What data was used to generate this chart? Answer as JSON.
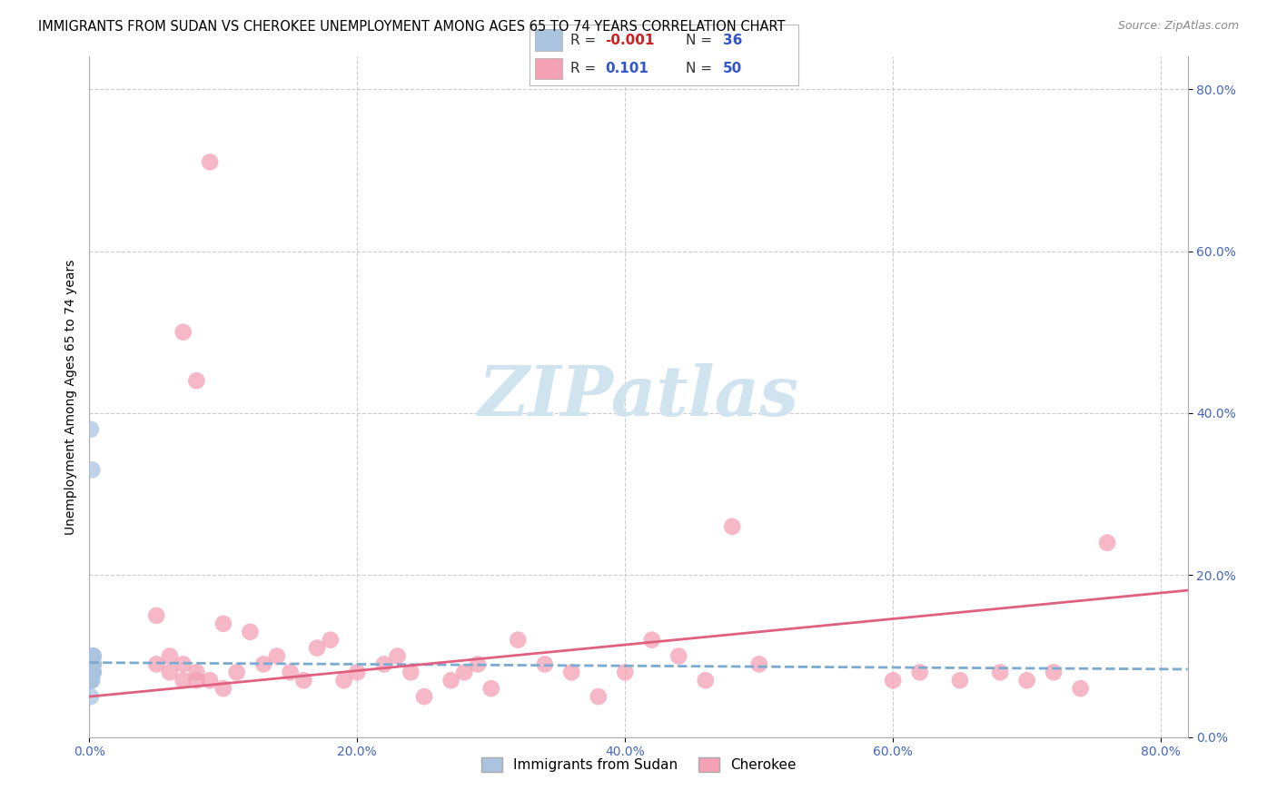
{
  "title": "IMMIGRANTS FROM SUDAN VS CHEROKEE UNEMPLOYMENT AMONG AGES 65 TO 74 YEARS CORRELATION CHART",
  "source": "Source: ZipAtlas.com",
  "ylabel": "Unemployment Among Ages 65 to 74 years",
  "series1_label": "Immigrants from Sudan",
  "series2_label": "Cherokee",
  "series1_color": "#aac4e0",
  "series2_color": "#f4a0b5",
  "trendline1_color": "#7aaad0",
  "trendline2_color": "#e06080",
  "watermark_text": "ZIPatlas",
  "watermark_color": "#d0e4f0",
  "legend_r1": "-0.001",
  "legend_n1": "36",
  "legend_r2": "0.101",
  "legend_n2": "50",
  "grid_color": "#cccccc",
  "bg_color": "#ffffff",
  "tick_color": "#4466bb",
  "xlim": [
    0.0,
    0.82
  ],
  "ylim": [
    0.0,
    0.84
  ],
  "xtick_vals": [
    0.0,
    0.2,
    0.4,
    0.6,
    0.8
  ],
  "ytick_vals": [
    0.0,
    0.2,
    0.4,
    0.6,
    0.8
  ],
  "blue_x": [
    0.001,
    0.002,
    0.001,
    0.002,
    0.003,
    0.001,
    0.002,
    0.001,
    0.003,
    0.002,
    0.001,
    0.002,
    0.003,
    0.001,
    0.002,
    0.001,
    0.002,
    0.001,
    0.003,
    0.001,
    0.002,
    0.001,
    0.002,
    0.003,
    0.002,
    0.001,
    0.002,
    0.001,
    0.002,
    0.001,
    0.002,
    0.001,
    0.002,
    0.003,
    0.001,
    0.002
  ],
  "blue_y": [
    0.38,
    0.33,
    0.09,
    0.1,
    0.1,
    0.08,
    0.09,
    0.07,
    0.1,
    0.09,
    0.08,
    0.1,
    0.09,
    0.09,
    0.08,
    0.1,
    0.09,
    0.08,
    0.09,
    0.07,
    0.1,
    0.08,
    0.09,
    0.08,
    0.1,
    0.09,
    0.08,
    0.07,
    0.09,
    0.08,
    0.1,
    0.09,
    0.07,
    0.08,
    0.05,
    0.1
  ],
  "pink_x": [
    0.05,
    0.07,
    0.08,
    0.09,
    0.1,
    0.05,
    0.06,
    0.07,
    0.08,
    0.06,
    0.07,
    0.08,
    0.09,
    0.1,
    0.11,
    0.12,
    0.13,
    0.14,
    0.15,
    0.16,
    0.17,
    0.18,
    0.19,
    0.2,
    0.22,
    0.23,
    0.24,
    0.25,
    0.27,
    0.28,
    0.29,
    0.3,
    0.32,
    0.34,
    0.36,
    0.38,
    0.4,
    0.42,
    0.44,
    0.46,
    0.48,
    0.5,
    0.6,
    0.62,
    0.65,
    0.68,
    0.7,
    0.72,
    0.74,
    0.76
  ],
  "pink_y": [
    0.15,
    0.5,
    0.44,
    0.71,
    0.14,
    0.09,
    0.1,
    0.09,
    0.07,
    0.08,
    0.07,
    0.08,
    0.07,
    0.06,
    0.08,
    0.13,
    0.09,
    0.1,
    0.08,
    0.07,
    0.11,
    0.12,
    0.07,
    0.08,
    0.09,
    0.1,
    0.08,
    0.05,
    0.07,
    0.08,
    0.09,
    0.06,
    0.12,
    0.09,
    0.08,
    0.05,
    0.08,
    0.12,
    0.1,
    0.07,
    0.26,
    0.09,
    0.07,
    0.08,
    0.07,
    0.08,
    0.07,
    0.08,
    0.06,
    0.24
  ],
  "title_fontsize": 10.5,
  "source_fontsize": 9,
  "axis_label_fontsize": 10,
  "tick_fontsize": 10,
  "watermark_fontsize": 55,
  "legend_fontsize": 11
}
